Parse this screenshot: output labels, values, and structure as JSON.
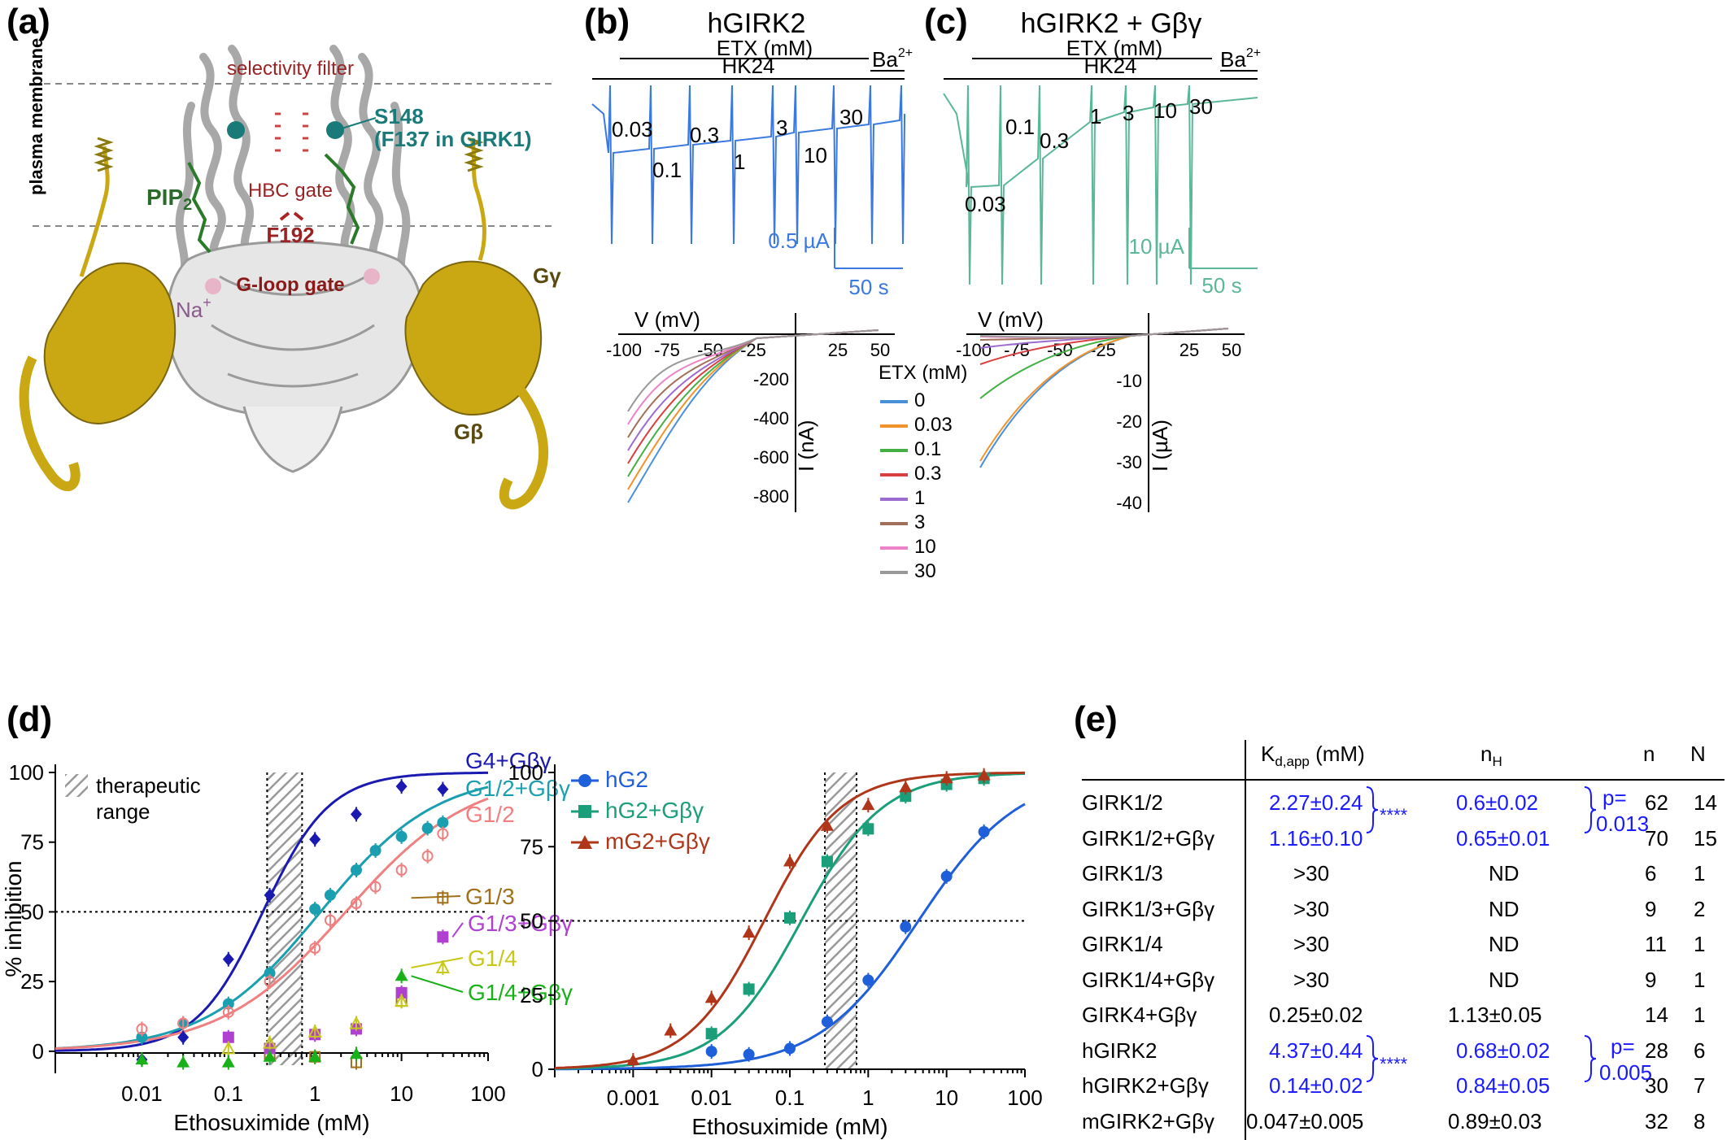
{
  "panels": {
    "a": {
      "letter": "(a)",
      "labels": {
        "membrane": "plasma membrane",
        "selectivity": "selectivity filter",
        "s148": "S148",
        "f137": "(F137 in GIRK1)",
        "pip2": "PIP",
        "pip2_sub": "2",
        "hbc": "HBC gate",
        "f192": "F192",
        "na": "Na",
        "na_sup": "+",
        "gloop": "G-loop gate",
        "ggamma": "Gγ",
        "gbeta": "Gβ"
      }
    },
    "b": {
      "letter": "(b)",
      "title": "hGIRK2",
      "etx": "ETX (mM)",
      "hk": "HK24",
      "ba": "Ba",
      "ba_sup": "2+",
      "concs": [
        "0.03",
        "0.1",
        "0.3",
        "1",
        "3",
        "10",
        "30"
      ],
      "scale_i": "0.5 µA",
      "scale_t": "50 s",
      "iv_v": "V (mV)",
      "iv_i": "I (nA)",
      "iv_xticks": [
        "-100",
        "-75",
        "-50",
        "-25",
        "25",
        "50"
      ],
      "iv_yticks": [
        "-200",
        "-400",
        "-600",
        "-800"
      ],
      "legend_title": "ETX (mM)",
      "legend": [
        {
          "label": "0",
          "color": "#4a90d9"
        },
        {
          "label": "0.03",
          "color": "#f0932b"
        },
        {
          "label": "0.1",
          "color": "#44b044"
        },
        {
          "label": "0.3",
          "color": "#d94040"
        },
        {
          "label": "1",
          "color": "#9b6bcf"
        },
        {
          "label": "3",
          "color": "#a0705a"
        },
        {
          "label": "10",
          "color": "#ee82c8"
        },
        {
          "label": "30",
          "color": "#999999"
        }
      ]
    },
    "c": {
      "letter": "(c)",
      "title": "hGIRK2 + Gβγ",
      "etx": "ETX (mM)",
      "hk": "HK24",
      "ba": "Ba",
      "ba_sup": "2+",
      "concs": [
        "0.03",
        "0.1",
        "0.3",
        "1",
        "3",
        "10",
        "30"
      ],
      "scale_i": "10 µA",
      "scale_t": "50 s",
      "iv_v": "V (mV)",
      "iv_i": "I (µA)",
      "iv_xticks": [
        "-100",
        "-75",
        "-50",
        "-25",
        "25",
        "50"
      ],
      "iv_yticks": [
        "-10",
        "-20",
        "-30",
        "-40"
      ]
    },
    "d": {
      "letter": "(d)",
      "ylabel": "% inhibition",
      "xlabel": "Ethosuximide (mM)",
      "left_xticks": [
        "0.01",
        "0.1",
        "1",
        "10",
        "100"
      ],
      "right_xticks": [
        "0.001",
        "0.01",
        "0.1",
        "1",
        "10",
        "100"
      ],
      "yticks": [
        "0",
        "25",
        "50",
        "75",
        "100"
      ],
      "therapeutic": "therapeutic range",
      "therapeutic_1": "therapeutic",
      "therapeutic_2": "range",
      "labels_left": [
        {
          "text": "G4+Gβγ",
          "color": "#1a1ab0"
        },
        {
          "text": "G1/2+Gβγ",
          "color": "#1a9fb0"
        },
        {
          "text": "G1/2",
          "color": "#f08080"
        },
        {
          "text": "G1/3",
          "color": "#a0701a"
        },
        {
          "text": "G1/3+Gβγ",
          "color": "#b040d0"
        },
        {
          "text": "G1/4",
          "color": "#c8c81a"
        },
        {
          "text": "G1/4+Gβγ",
          "color": "#1ab01a"
        }
      ],
      "legend_right": [
        {
          "text": "hG2",
          "color": "#1f5fd9"
        },
        {
          "text": "hG2+Gβγ",
          "color": "#1a9f7a"
        },
        {
          "text": "mG2+Gβγ",
          "color": "#b0361a"
        }
      ]
    },
    "e": {
      "letter": "(e)",
      "headers": {
        "kd": "K",
        "kd_sub": "d,app",
        "kd_unit": " (mM)",
        "nh": "n",
        "nh_sub": "H",
        "n": "n",
        "N": "N"
      },
      "rows": [
        {
          "name": "GIRK1/2",
          "kd": "2.27±0.24",
          "nh": "0.6±0.02",
          "n": "62",
          "N": "14",
          "blue": true
        },
        {
          "name": "GIRK1/2+Gβγ",
          "kd": "1.16±0.10",
          "nh": "0.65±0.01",
          "n": "70",
          "N": "15",
          "blue": true
        },
        {
          "name": "GIRK1/3",
          "kd": ">30",
          "nh": "ND",
          "n": "6",
          "N": "1",
          "blue": false
        },
        {
          "name": "GIRK1/3+Gβγ",
          "kd": ">30",
          "nh": "ND",
          "n": "9",
          "N": "2",
          "blue": false
        },
        {
          "name": "GIRK1/4",
          "kd": ">30",
          "nh": "ND",
          "n": "11",
          "N": "1",
          "blue": false
        },
        {
          "name": "GIRK1/4+Gβγ",
          "kd": ">30",
          "nh": "ND",
          "n": "9",
          "N": "1",
          "blue": false
        },
        {
          "name": "GIRK4+Gβγ",
          "kd": "0.25±0.02",
          "nh": "1.13±0.05",
          "n": "14",
          "N": "1",
          "blue": false
        },
        {
          "name": "hGIRK2",
          "kd": "4.37±0.44",
          "nh": "0.68±0.02",
          "n": "28",
          "N": "6",
          "blue": true
        },
        {
          "name": "hGIRK2+Gβγ",
          "kd": "0.14±0.02",
          "nh": "0.84±0.05",
          "n": "30",
          "N": "7",
          "blue": true
        },
        {
          "name": "mGIRK2+Gβγ",
          "kd": "0.047±0.005",
          "nh": "0.89±0.03",
          "n": "32",
          "N": "8",
          "blue": false
        }
      ],
      "stars1": "****",
      "stars2": "****",
      "p1a": "p=",
      "p1b": "0.013",
      "p2a": "p=",
      "p2b": "0.005"
    }
  },
  "chart_data": [
    {
      "type": "scatter",
      "xscale": "log",
      "xlabel": "Ethosuximide (mM)",
      "ylabel": "% inhibition",
      "xlim": [
        0.001,
        100
      ],
      "ylim": [
        -5,
        100
      ],
      "series": [
        {
          "name": "G4+Gβγ",
          "color": "#1a1ab0",
          "kd": 0.25,
          "nh": 1.13,
          "x": [
            0.01,
            0.03,
            0.1,
            0.3,
            1,
            3,
            10,
            30
          ],
          "y": [
            -3,
            5,
            33,
            56,
            76,
            85,
            95,
            94
          ]
        },
        {
          "name": "G1/2+Gβγ",
          "color": "#1a9fb0",
          "kd": 1.16,
          "nh": 0.65,
          "x": [
            0.01,
            0.03,
            0.1,
            0.3,
            1,
            1.5,
            3,
            5,
            10,
            20,
            30
          ],
          "y": [
            5,
            10,
            17,
            28,
            51,
            56,
            65,
            72,
            77,
            80,
            82
          ]
        },
        {
          "name": "G1/2",
          "color": "#f08080",
          "kd": 2.27,
          "nh": 0.6,
          "x": [
            0.01,
            0.03,
            0.1,
            0.3,
            1,
            1.5,
            3,
            5,
            10,
            20,
            30
          ],
          "y": [
            8,
            10,
            14,
            25,
            37,
            47,
            53,
            59,
            65,
            70,
            78
          ]
        },
        {
          "name": "G1/3",
          "color": "#a0701a",
          "x": [
            0.3,
            1,
            3,
            10,
            30
          ],
          "y": [
            -1,
            -2,
            -4,
            18,
            55
          ]
        },
        {
          "name": "G1/3+Gβγ",
          "color": "#b040d0",
          "x": [
            0.1,
            0.3,
            1,
            3,
            10,
            30
          ],
          "y": [
            5,
            1,
            6,
            8,
            21,
            41
          ]
        },
        {
          "name": "G1/4",
          "color": "#c8c81a",
          "x": [
            0.1,
            0.3,
            1,
            3,
            10,
            30
          ],
          "y": [
            1,
            3,
            7,
            10,
            18,
            30
          ]
        },
        {
          "name": "G1/4+Gβγ",
          "color": "#1ab01a",
          "x": [
            0.01,
            0.03,
            0.1,
            0.3,
            1,
            3,
            10
          ],
          "y": [
            -3,
            -4,
            -4,
            -2,
            -2,
            -1,
            27
          ]
        }
      ],
      "therapeutic_range": [
        0.28,
        0.71
      ],
      "hlines": [
        50
      ]
    },
    {
      "type": "scatter",
      "xscale": "log",
      "xlabel": "Ethosuximide (mM)",
      "ylabel": "",
      "xlim": [
        0.0001,
        100
      ],
      "ylim": [
        0,
        100
      ],
      "series": [
        {
          "name": "hG2",
          "color": "#1f5fd9",
          "kd": 4.37,
          "nh": 0.68,
          "x": [
            0.01,
            0.03,
            0.1,
            0.3,
            1,
            3,
            10,
            30
          ],
          "y": [
            6,
            5,
            7,
            16,
            30,
            48,
            65,
            80
          ]
        },
        {
          "name": "hG2+Gβγ",
          "color": "#1a9f7a",
          "kd": 0.14,
          "nh": 0.84,
          "x": [
            0.01,
            0.03,
            0.1,
            0.3,
            1,
            3,
            10,
            30
          ],
          "y": [
            12,
            27,
            51,
            70,
            81,
            92,
            96,
            98
          ]
        },
        {
          "name": "mG2+Gβγ",
          "color": "#b0361a",
          "kd": 0.047,
          "nh": 0.89,
          "x": [
            0.001,
            0.003,
            0.01,
            0.03,
            0.1,
            0.3,
            1,
            3,
            10,
            30
          ],
          "y": [
            3,
            13,
            24,
            46,
            70,
            82,
            89,
            95,
            98,
            99
          ]
        }
      ],
      "therapeutic_range": [
        0.28,
        0.71
      ],
      "hlines": [
        50
      ]
    }
  ]
}
